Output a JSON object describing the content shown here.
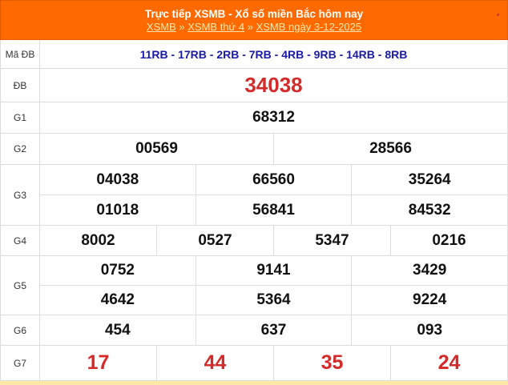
{
  "header": {
    "title": "Trực tiếp XSMB - Xổ số miền Bắc hôm nay",
    "breadcrumb": [
      "XSMB",
      "XSMB thứ 4",
      "XSMB ngày 3-12-2025"
    ],
    "sep": "»"
  },
  "rows": {
    "ma": {
      "label": "Mã ĐB",
      "value": "11RB - 17RB - 2RB - 7RB - 4RB - 9RB - 14RB - 8RB"
    },
    "db": {
      "label": "ĐB",
      "values": [
        "34038"
      ]
    },
    "g1": {
      "label": "G1",
      "values": [
        "68312"
      ]
    },
    "g2": {
      "label": "G2",
      "values": [
        "00569",
        "28566"
      ]
    },
    "g3": {
      "label": "G3",
      "values": [
        "04038",
        "66560",
        "35264",
        "01018",
        "56841",
        "84532"
      ]
    },
    "g4": {
      "label": "G4",
      "values": [
        "8002",
        "0527",
        "5347",
        "0216"
      ]
    },
    "g5": {
      "label": "G5",
      "values": [
        "0752",
        "9141",
        "3429",
        "4642",
        "5364",
        "9224"
      ]
    },
    "g6": {
      "label": "G6",
      "values": [
        "454",
        "637",
        "093"
      ]
    },
    "g7": {
      "label": "G7",
      "values": [
        "17",
        "44",
        "35",
        "24"
      ]
    }
  },
  "colors": {
    "header": "#ff6a00",
    "special": "#d42a2a",
    "code": "#1a1aa8"
  }
}
